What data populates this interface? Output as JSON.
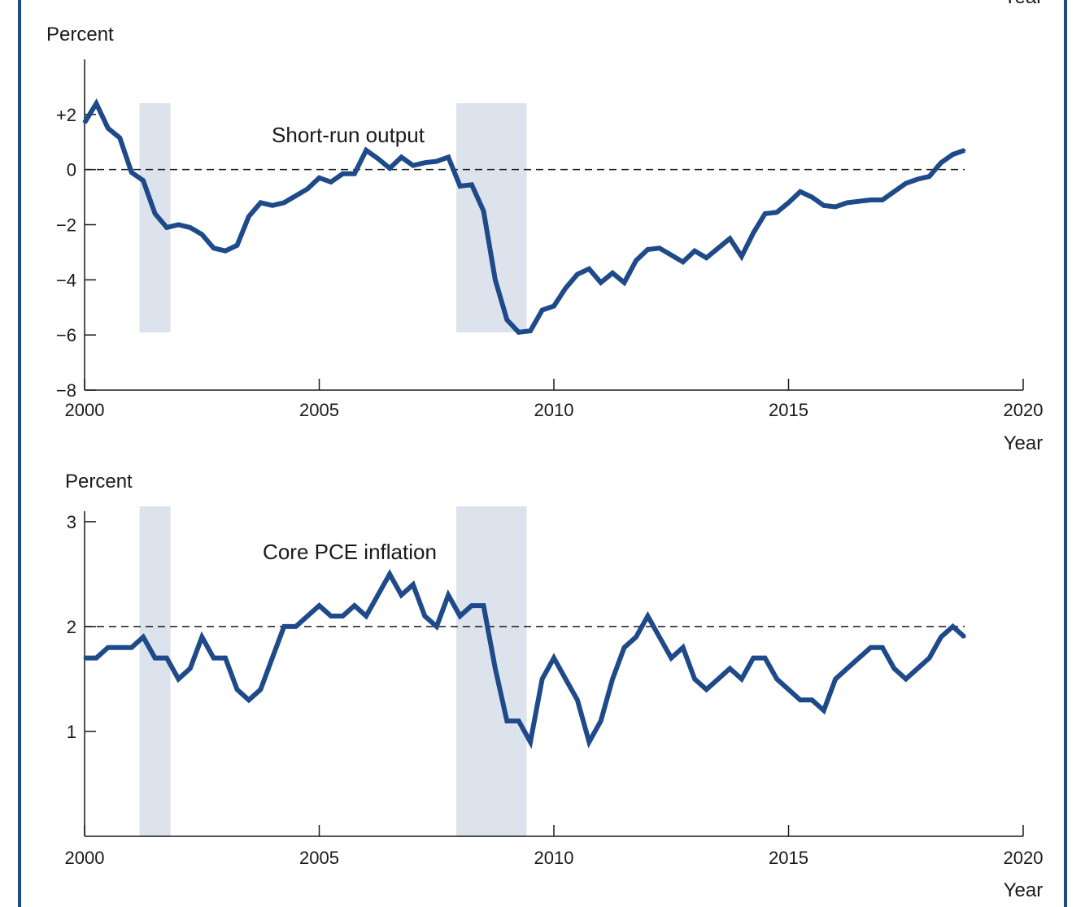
{
  "colors": {
    "frame": "#1f4a8a",
    "line": "#1f4a8a",
    "recession": "#dde3ec",
    "axis": "#1a1a1a",
    "reference": "#1a1a1a"
  },
  "corner_label": "Year",
  "recessions": [
    [
      2001.17,
      2001.83
    ],
    [
      2007.92,
      2009.42
    ]
  ],
  "chart_data": [
    {
      "type": "line",
      "title": "Short-run output",
      "ylabel": "Percent",
      "xlabel": "Year",
      "xlim": [
        2000,
        2020
      ],
      "ylim": [
        -8,
        4
      ],
      "xticks": [
        2000,
        2005,
        2010,
        2015,
        2020
      ],
      "xtick_labels": [
        "2000",
        "2005",
        "2010",
        "2015",
        "2020"
      ],
      "yticks": [
        2,
        0,
        -2,
        -4,
        -6,
        -8
      ],
      "ytick_labels": [
        "+2",
        "0",
        "−2",
        "−4",
        "−6",
        "−8"
      ],
      "reference_line": 0,
      "shaded_regions": "recessions",
      "grid": false,
      "series": [
        {
          "x": [
            2000.0,
            2000.25,
            2000.5,
            2000.75,
            2001.0,
            2001.25,
            2001.5,
            2001.75,
            2002.0,
            2002.25,
            2002.5,
            2002.75,
            2003.0,
            2003.25,
            2003.5,
            2003.75,
            2004.0,
            2004.25,
            2004.5,
            2004.75,
            2005.0,
            2005.25,
            2005.5,
            2005.75,
            2006.0,
            2006.25,
            2006.5,
            2006.75,
            2007.0,
            2007.25,
            2007.5,
            2007.75,
            2008.0,
            2008.25,
            2008.5,
            2008.75,
            2009.0,
            2009.25,
            2009.5,
            2009.75,
            2010.0,
            2010.25,
            2010.5,
            2010.75,
            2011.0,
            2011.25,
            2011.5,
            2011.75,
            2012.0,
            2012.25,
            2012.5,
            2012.75,
            2013.0,
            2013.25,
            2013.5,
            2013.75,
            2014.0,
            2014.25,
            2014.5,
            2014.75,
            2015.0,
            2015.25,
            2015.5,
            2015.75,
            2016.0,
            2016.25,
            2016.5,
            2016.75,
            2017.0,
            2017.25,
            2017.5,
            2017.75,
            2018.0,
            2018.25,
            2018.5,
            2018.75
          ],
          "y": [
            1.7,
            2.4,
            1.5,
            1.15,
            -0.1,
            -0.4,
            -1.6,
            -2.1,
            -2.0,
            -2.1,
            -2.35,
            -2.85,
            -2.95,
            -2.75,
            -1.7,
            -1.2,
            -1.3,
            -1.2,
            -0.95,
            -0.7,
            -0.3,
            -0.45,
            -0.15,
            -0.15,
            0.7,
            0.4,
            0.05,
            0.45,
            0.15,
            0.25,
            0.3,
            0.45,
            -0.6,
            -0.55,
            -1.5,
            -4.0,
            -5.45,
            -5.9,
            -5.85,
            -5.1,
            -4.95,
            -4.3,
            -3.8,
            -3.6,
            -4.1,
            -3.75,
            -4.1,
            -3.3,
            -2.9,
            -2.85,
            -3.1,
            -3.35,
            -2.95,
            -3.2,
            -2.85,
            -2.5,
            -3.15,
            -2.3,
            -1.6,
            -1.55,
            -1.2,
            -0.8,
            -1.0,
            -1.3,
            -1.35,
            -1.2,
            -1.15,
            -1.1,
            -1.1,
            -0.8,
            -0.5,
            -0.35,
            -0.25,
            0.25,
            0.55,
            0.7
          ]
        }
      ]
    },
    {
      "type": "line",
      "title": "Core PCE inflation",
      "ylabel": "Percent",
      "xlabel": "Year",
      "xlim": [
        2000,
        2020
      ],
      "ylim": [
        0,
        3.2
      ],
      "xticks": [
        2000,
        2005,
        2010,
        2015,
        2020
      ],
      "xtick_labels": [
        "2000",
        "2005",
        "2010",
        "2015",
        "2020"
      ],
      "yticks": [
        3,
        2,
        1
      ],
      "ytick_labels": [
        "3",
        "2",
        "1"
      ],
      "reference_line": 2,
      "shaded_regions": "recessions",
      "grid": false,
      "series": [
        {
          "x": [
            2000.0,
            2000.25,
            2000.5,
            2000.75,
            2001.0,
            2001.25,
            2001.5,
            2001.75,
            2002.0,
            2002.25,
            2002.5,
            2002.75,
            2003.0,
            2003.25,
            2003.5,
            2003.75,
            2004.0,
            2004.25,
            2004.5,
            2004.75,
            2005.0,
            2005.25,
            2005.5,
            2005.75,
            2006.0,
            2006.25,
            2006.5,
            2006.75,
            2007.0,
            2007.25,
            2007.5,
            2007.75,
            2008.0,
            2008.25,
            2008.5,
            2008.75,
            2009.0,
            2009.25,
            2009.5,
            2009.75,
            2010.0,
            2010.25,
            2010.5,
            2010.75,
            2011.0,
            2011.25,
            2011.5,
            2011.75,
            2012.0,
            2012.25,
            2012.5,
            2012.75,
            2013.0,
            2013.25,
            2013.5,
            2013.75,
            2014.0,
            2014.25,
            2014.5,
            2014.75,
            2015.0,
            2015.25,
            2015.5,
            2015.75,
            2016.0,
            2016.25,
            2016.5,
            2016.75,
            2017.0,
            2017.25,
            2017.5,
            2017.75,
            2018.0,
            2018.25,
            2018.5,
            2018.75
          ],
          "y": [
            1.7,
            1.7,
            1.8,
            1.8,
            1.8,
            1.9,
            1.7,
            1.7,
            1.5,
            1.6,
            1.9,
            1.7,
            1.7,
            1.4,
            1.3,
            1.4,
            1.7,
            2.0,
            2.0,
            2.1,
            2.2,
            2.1,
            2.1,
            2.2,
            2.1,
            2.3,
            2.5,
            2.3,
            2.4,
            2.1,
            2.0,
            2.3,
            2.1,
            2.2,
            2.2,
            1.6,
            1.1,
            1.1,
            0.9,
            1.5,
            1.7,
            1.5,
            1.3,
            0.9,
            1.1,
            1.5,
            1.8,
            1.9,
            2.1,
            1.9,
            1.7,
            1.8,
            1.5,
            1.4,
            1.5,
            1.6,
            1.5,
            1.7,
            1.7,
            1.5,
            1.4,
            1.3,
            1.3,
            1.2,
            1.5,
            1.6,
            1.7,
            1.8,
            1.8,
            1.6,
            1.5,
            1.6,
            1.7,
            1.9,
            2.0,
            1.9
          ]
        }
      ]
    }
  ]
}
